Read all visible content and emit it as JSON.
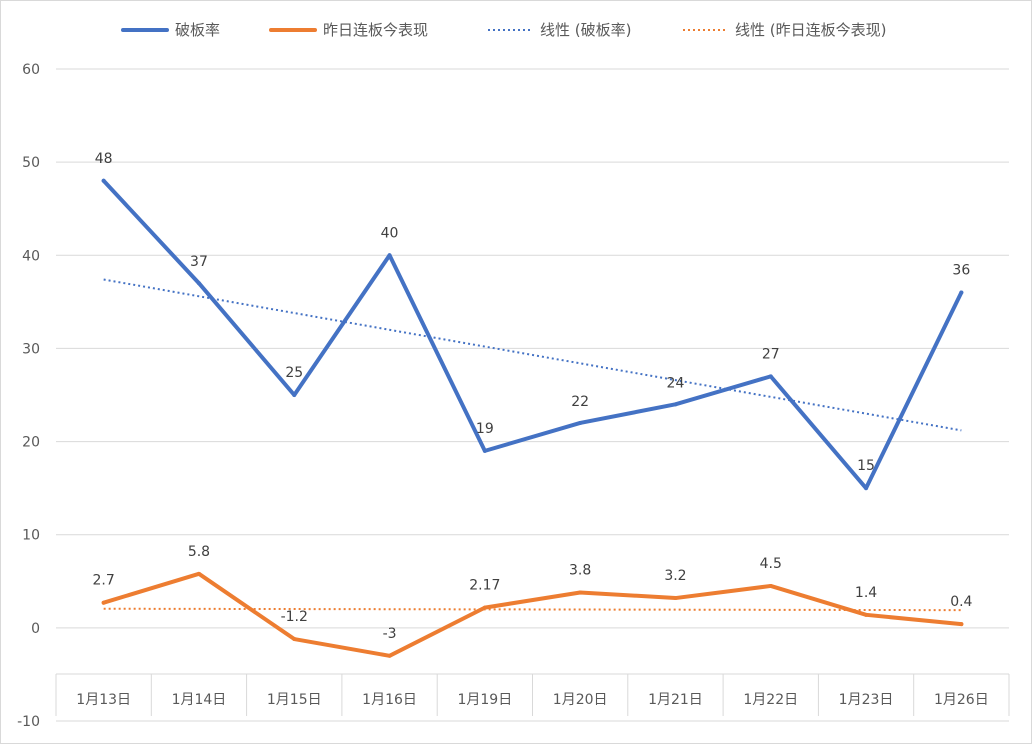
{
  "chart_data": {
    "type": "line",
    "categories": [
      "1月13日",
      "1月14日",
      "1月15日",
      "1月16日",
      "1月19日",
      "1月20日",
      "1月21日",
      "1月22日",
      "1月23日",
      "1月26日"
    ],
    "series": [
      {
        "name": "破板率",
        "values": [
          48,
          37,
          25,
          40,
          19,
          22,
          24,
          27,
          15,
          36
        ],
        "labels": [
          "48",
          "37",
          "25",
          "40",
          "19",
          "22",
          "24",
          "27",
          "15",
          "36"
        ],
        "color": "#4472c4"
      },
      {
        "name": "昨日连板今表现",
        "values": [
          2.7,
          5.8,
          -1.2,
          -3,
          2.17,
          3.8,
          3.2,
          4.5,
          1.4,
          0.4
        ],
        "labels": [
          "2.7",
          "5.8",
          "-1.2",
          "-3",
          "2.17",
          "3.8",
          "3.2",
          "4.5",
          "1.4",
          "0.4"
        ],
        "color": "#ed7d31"
      }
    ],
    "trendlines": [
      {
        "name": "线性 (破板率)",
        "type": "linear",
        "of": "破板率",
        "color": "#4472c4"
      },
      {
        "name": "线性 (昨日连板今表现)",
        "type": "linear",
        "of": "昨日连板今表现",
        "color": "#ed7d31"
      }
    ],
    "ylim": [
      -10,
      60
    ],
    "yticks": [
      "60",
      "50",
      "40",
      "30",
      "20",
      "10",
      "0",
      "-10"
    ],
    "grid": true,
    "legend_position": "top"
  }
}
